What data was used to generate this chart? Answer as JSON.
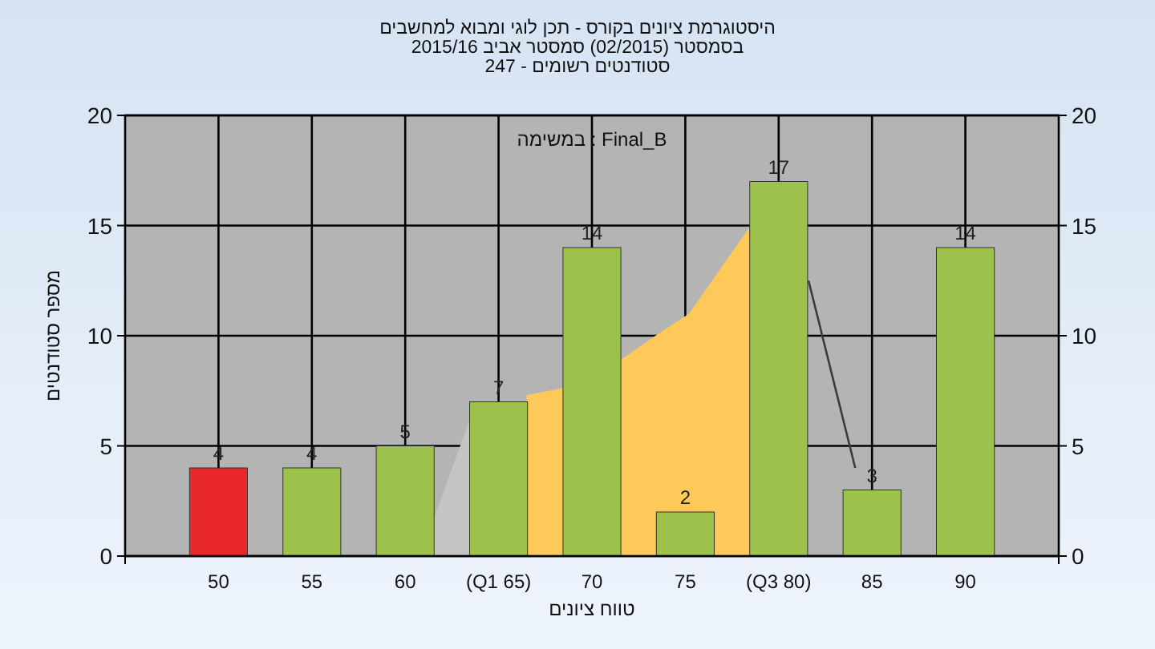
{
  "chart_data": {
    "type": "bar",
    "title": "היסטוגרמת ציונים בקורס - תכן לוגי ומבוא למחשבים",
    "subtitle": "בסמסטר (02/2015)  סמסטר אביב 2015/16\nסטודנטים רשומים - 247",
    "xlabel": "טווח ציונים",
    "ylabel": "מספר סטודנטים",
    "annotations": [
      "במשימה : Final_B"
    ],
    "xlim": [
      45,
      95
    ],
    "xticks": [
      50,
      55,
      60,
      {
        "value": 65,
        "label": "(Q1 65)"
      },
      70,
      75,
      {
        "value": 80,
        "label": "(Q3 80)"
      },
      85,
      90
    ],
    "ylim": [
      0,
      20
    ],
    "yticks": [
      0,
      5,
      10,
      15,
      20
    ],
    "y2lim": [
      0,
      20
    ],
    "y2ticks": [
      0,
      5,
      10,
      15,
      20
    ],
    "grid": true,
    "series": [
      {
        "type": "area",
        "color": "#c4c4c4",
        "x": [
          60.8,
          63.5
        ],
        "values": [
          0,
          6.3
        ]
      },
      {
        "type": "area",
        "color": "#ffc95a",
        "x": [
          66.5,
          68.3,
          71.7,
          73.4,
          75.2,
          78.5
        ],
        "values": [
          7.3,
          7.6,
          9,
          10,
          11,
          15
        ]
      },
      {
        "type": "line",
        "color": "#3c3c3c",
        "x": [
          81.6,
          84.1
        ],
        "values": [
          12.5,
          4
        ]
      },
      {
        "value_labels": [
          "4",
          "4",
          "5",
          "7",
          "14",
          "2",
          "17",
          "3",
          "14"
        ],
        "x": [
          50,
          55,
          60,
          65,
          70,
          75,
          80,
          85,
          90
        ],
        "values": [
          4,
          4,
          5,
          7,
          14,
          2,
          17,
          3,
          14
        ],
        "colors": [
          "#e8272b",
          "#9cc24c",
          "#9cc24c",
          "#9cc24c",
          "#9cc24c",
          "#9cc24c",
          "#9cc24c",
          "#9cc24c",
          "#9cc24c"
        ]
      }
    ]
  }
}
